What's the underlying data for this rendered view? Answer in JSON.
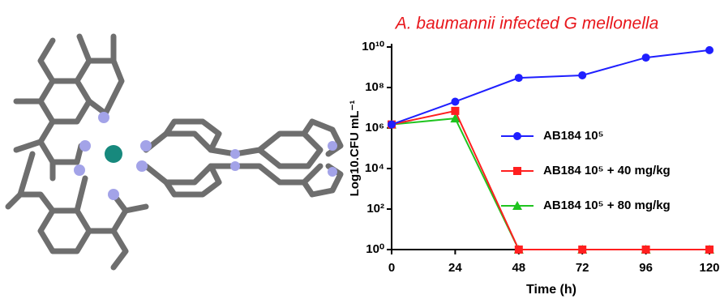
{
  "chart_data": {
    "type": "line",
    "title": "A. baumannii infected G mellonella",
    "title_color": "#e8161b",
    "x_label": "Time (h)",
    "y_label": "Log10.CFU mL⁻¹",
    "x": [
      0,
      24,
      48,
      72,
      96,
      120
    ],
    "xlim": [
      0,
      120
    ],
    "xticks": [
      0,
      24,
      48,
      72,
      96,
      120
    ],
    "ylim": [
      1,
      10000000000
    ],
    "log_y": true,
    "yticks": [
      {
        "value": 1,
        "label": "10⁰"
      },
      {
        "value": 100,
        "label": "10²"
      },
      {
        "value": 10000,
        "label": "10⁴"
      },
      {
        "value": 1000000,
        "label": "10⁶"
      },
      {
        "value": 100000000,
        "label": "10⁸"
      },
      {
        "value": 10000000000,
        "label": "10¹⁰"
      }
    ],
    "legend": "right",
    "series": [
      {
        "name": "AB184 10⁵",
        "color": "#1f1fff",
        "marker": "circle",
        "values": [
          1500000,
          20000000,
          300000000,
          400000000,
          3000000000,
          7000000000
        ]
      },
      {
        "name": "AB184 10⁵ + 40 mg/kg",
        "color": "#ff1f1f",
        "marker": "square",
        "values": [
          1500000,
          7000000,
          1,
          1,
          1,
          1
        ]
      },
      {
        "name": "AB184 10⁵ + 80 mg/kg",
        "color": "#1fc41f",
        "marker": "triangle",
        "values": [
          1500000,
          3000000,
          1,
          1,
          1,
          1
        ]
      }
    ]
  }
}
